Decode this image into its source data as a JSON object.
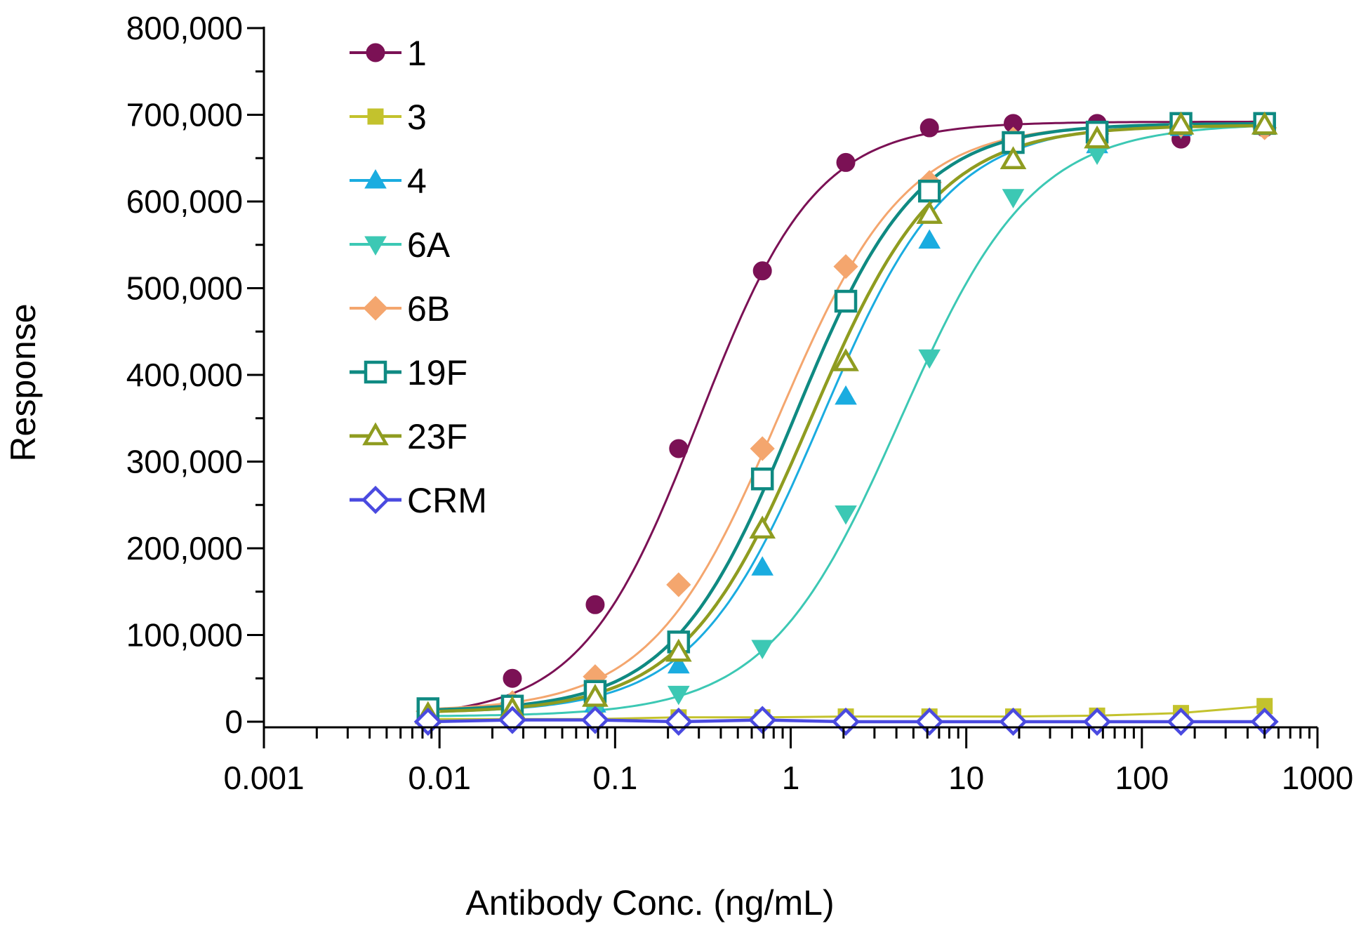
{
  "chart_data": {
    "type": "line",
    "title": "",
    "xlabel": "Antibody Conc. (ng/mL)",
    "ylabel": "Response",
    "xscale": "log",
    "xlim": [
      0.001,
      1000
    ],
    "ylim": [
      0,
      800000
    ],
    "x_tick_labels": [
      "0.001",
      "0.01",
      "0.1",
      "1",
      "10",
      "100",
      "1000"
    ],
    "y_tick_labels": [
      "0",
      "100,000",
      "200,000",
      "300,000",
      "400,000",
      "500,000",
      "600,000",
      "700,000",
      "800,000"
    ],
    "legend_position": "top-left",
    "grid": false,
    "x": [
      0.0086,
      0.026,
      0.077,
      0.23,
      0.69,
      2.06,
      6.17,
      18.5,
      55.6,
      167,
      500
    ],
    "series": [
      {
        "name": "1",
        "color": "#7b1155",
        "marker": "circle",
        "filled": true,
        "values": [
          15000,
          50000,
          135000,
          315000,
          520000,
          645000,
          685000,
          690000,
          690000,
          672000,
          685000
        ],
        "fit": {
          "bottom": 5000,
          "top": 692000,
          "ec50": 0.3,
          "hill": 1.3
        }
      },
      {
        "name": "3",
        "color": "#c3c22d",
        "marker": "square",
        "filled": true,
        "values": [
          3000,
          3000,
          3000,
          5000,
          5000,
          6000,
          6000,
          6000,
          7000,
          10000,
          18000
        ],
        "fit": null
      },
      {
        "name": "4",
        "color": "#1aace0",
        "marker": "triangle-up",
        "filled": true,
        "values": [
          10000,
          12000,
          20000,
          65000,
          178000,
          375000,
          555000,
          650000,
          665000,
          685000,
          688000
        ],
        "fit": {
          "bottom": 10000,
          "top": 690000,
          "ec50": 1.5,
          "hill": 1.2
        }
      },
      {
        "name": "6A",
        "color": "#3cc8b4",
        "marker": "triangle-down",
        "filled": true,
        "values": [
          5000,
          8000,
          12000,
          32000,
          85000,
          240000,
          420000,
          605000,
          655000,
          685000,
          685000
        ],
        "fit": {
          "bottom": 6000,
          "top": 690000,
          "ec50": 4.2,
          "hill": 1.15
        }
      },
      {
        "name": "6B",
        "color": "#f4a66e",
        "marker": "diamond",
        "filled": true,
        "values": [
          12000,
          22000,
          52000,
          158000,
          315000,
          525000,
          622000,
          672000,
          678000,
          688000,
          685000
        ],
        "fit": {
          "bottom": 12000,
          "top": 690000,
          "ec50": 0.85,
          "hill": 1.2
        }
      },
      {
        "name": "19F",
        "color": "#0f8a82",
        "marker": "square",
        "filled": false,
        "values": [
          15000,
          18000,
          35000,
          92000,
          280000,
          485000,
          612000,
          668000,
          680000,
          690000,
          690000
        ],
        "fit": {
          "bottom": 12000,
          "top": 690000,
          "ec50": 1.05,
          "hill": 1.25
        }
      },
      {
        "name": "23F",
        "color": "#8f9c20",
        "marker": "triangle-up",
        "filled": false,
        "values": [
          8000,
          14000,
          28000,
          80000,
          222000,
          415000,
          585000,
          648000,
          672000,
          688000,
          688000
        ],
        "fit": {
          "bottom": 10000,
          "top": 688000,
          "ec50": 1.3,
          "hill": 1.2
        }
      },
      {
        "name": "CRM",
        "color": "#4a4ae0",
        "marker": "diamond",
        "filled": false,
        "values": [
          0,
          2000,
          2000,
          0,
          2000,
          0,
          0,
          0,
          0,
          0,
          0
        ],
        "fit": null
      }
    ]
  }
}
